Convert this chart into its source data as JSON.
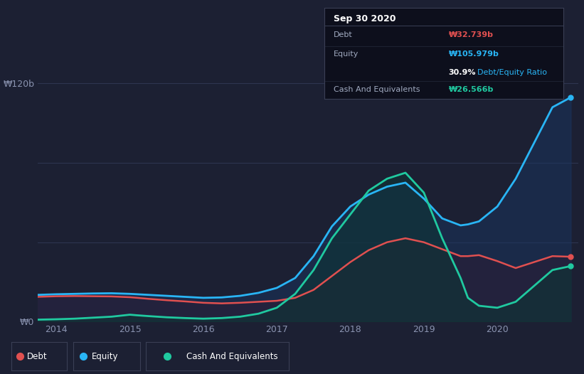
{
  "bg_color": "#1c2033",
  "grid_color": "#2e3450",
  "debt_color": "#e05050",
  "equity_color": "#29b5f5",
  "cash_color": "#20c9a0",
  "x": [
    2013.75,
    2014.0,
    2014.25,
    2014.5,
    2014.75,
    2015.0,
    2015.1,
    2015.25,
    2015.5,
    2015.75,
    2016.0,
    2016.25,
    2016.5,
    2016.75,
    2017.0,
    2017.25,
    2017.5,
    2017.75,
    2018.0,
    2018.25,
    2018.5,
    2018.75,
    2019.0,
    2019.25,
    2019.5,
    2019.6,
    2019.75,
    2020.0,
    2020.25,
    2020.5,
    2020.75,
    2021.0
  ],
  "equity": [
    13.5,
    13.8,
    14.0,
    14.2,
    14.3,
    14.0,
    13.8,
    13.5,
    13.0,
    12.5,
    12.0,
    12.2,
    13.0,
    14.5,
    17.0,
    22.0,
    33.0,
    48.0,
    58.0,
    64.0,
    68.0,
    70.0,
    62.0,
    52.0,
    48.5,
    49.0,
    50.5,
    58.0,
    72.0,
    90.0,
    108.0,
    113.0
  ],
  "debt": [
    12.5,
    12.8,
    12.9,
    12.8,
    12.7,
    12.3,
    12.0,
    11.5,
    10.8,
    10.2,
    9.5,
    9.2,
    9.5,
    10.0,
    10.5,
    12.0,
    16.0,
    23.0,
    30.0,
    36.0,
    40.0,
    42.0,
    40.0,
    36.5,
    33.0,
    33.0,
    33.5,
    30.5,
    27.0,
    30.0,
    33.0,
    32.7
  ],
  "cash": [
    1.0,
    1.2,
    1.5,
    2.0,
    2.5,
    3.5,
    3.2,
    2.8,
    2.2,
    1.8,
    1.5,
    1.8,
    2.5,
    4.0,
    7.0,
    14.0,
    26.0,
    42.0,
    54.0,
    66.0,
    72.0,
    75.0,
    65.0,
    42.0,
    22.0,
    12.0,
    8.0,
    7.0,
    10.0,
    18.0,
    26.0,
    28.0
  ],
  "ylim": [
    0,
    130
  ],
  "xlim": [
    2013.75,
    2021.1
  ],
  "ytick_positions": [
    0,
    40,
    80,
    120
  ],
  "ytick_labels": [
    "₩0",
    "",
    "",
    "₩120b"
  ],
  "xticks": [
    2014,
    2015,
    2016,
    2017,
    2018,
    2019,
    2020
  ],
  "xlabels": [
    "2014",
    "2015",
    "2016",
    "2017",
    "2018",
    "2019",
    "2020"
  ],
  "title_box": {
    "date": "Sep 30 2020",
    "debt_label": "Debt",
    "debt_value": "₩32.739b",
    "debt_color": "#e05050",
    "equity_label": "Equity",
    "equity_value": "₩105.979b",
    "equity_color": "#29b5f5",
    "ratio_pct": "30.9%",
    "ratio_label": "Debt/Equity Ratio",
    "ratio_label_color": "#29b5f5",
    "cash_label": "Cash And Equivalents",
    "cash_value": "₩26.566b",
    "cash_color": "#20c9a0",
    "box_bg": "#0d0f1c",
    "label_color": "#a0aac0"
  },
  "legend_items": [
    {
      "label": "Debt",
      "color": "#e05050"
    },
    {
      "label": "Equity",
      "color": "#29b5f5"
    },
    {
      "label": "Cash And Equivalents",
      "color": "#20c9a0"
    }
  ]
}
